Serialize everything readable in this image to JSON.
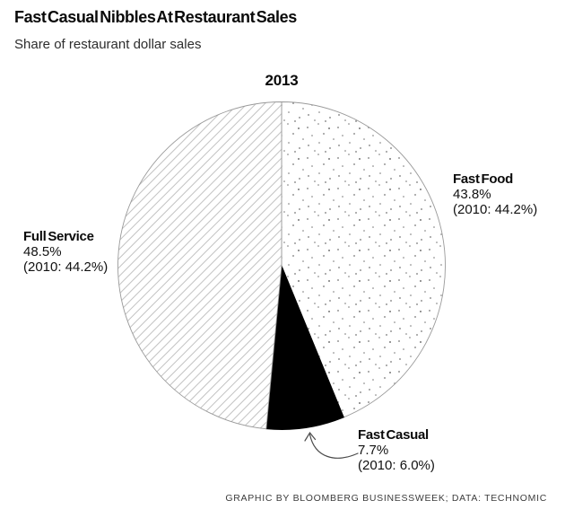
{
  "header": {
    "title": "Fast Casual Nibbles At Restaurant Sales",
    "subtitle": "Share of restaurant dollar sales"
  },
  "chart_data": {
    "type": "pie",
    "title": "Fast Casual Nibbles At Restaurant Sales",
    "subtitle": "Share of restaurant dollar sales",
    "year_label": "2013",
    "unit": "percent of restaurant dollar sales",
    "start_angle": "12 o'clock",
    "direction": "clockwise",
    "slices": [
      {
        "id": "fast-food",
        "label": "Fast Food",
        "value": 43.8,
        "value_label": "43.8%",
        "prior_label": "(2010: 44.2%)",
        "prior_value": 44.2,
        "fill_style": "dots"
      },
      {
        "id": "fast-casual",
        "label": "Fast Casual",
        "value": 7.7,
        "value_label": "7.7%",
        "prior_label": "(2010: 6.0%)",
        "prior_value": 6.0,
        "fill_style": "solid"
      },
      {
        "id": "full-service",
        "label": "Full Service",
        "value": 48.5,
        "value_label": "48.5%",
        "prior_label": "(2010: 44.2%)",
        "prior_value": 44.2,
        "fill_style": "hatch"
      }
    ],
    "colors": {
      "solid_fill": "#000000",
      "hatch_line": "#c2c2c2",
      "dot": "#777777",
      "outline": "#9a9a9a",
      "background": "#ffffff",
      "arrow": "#4a4a4a"
    }
  },
  "footer": {
    "credit": "GRAPHIC BY BLOOMBERG BUSINESSWEEK; DATA: TECHNOMIC"
  }
}
